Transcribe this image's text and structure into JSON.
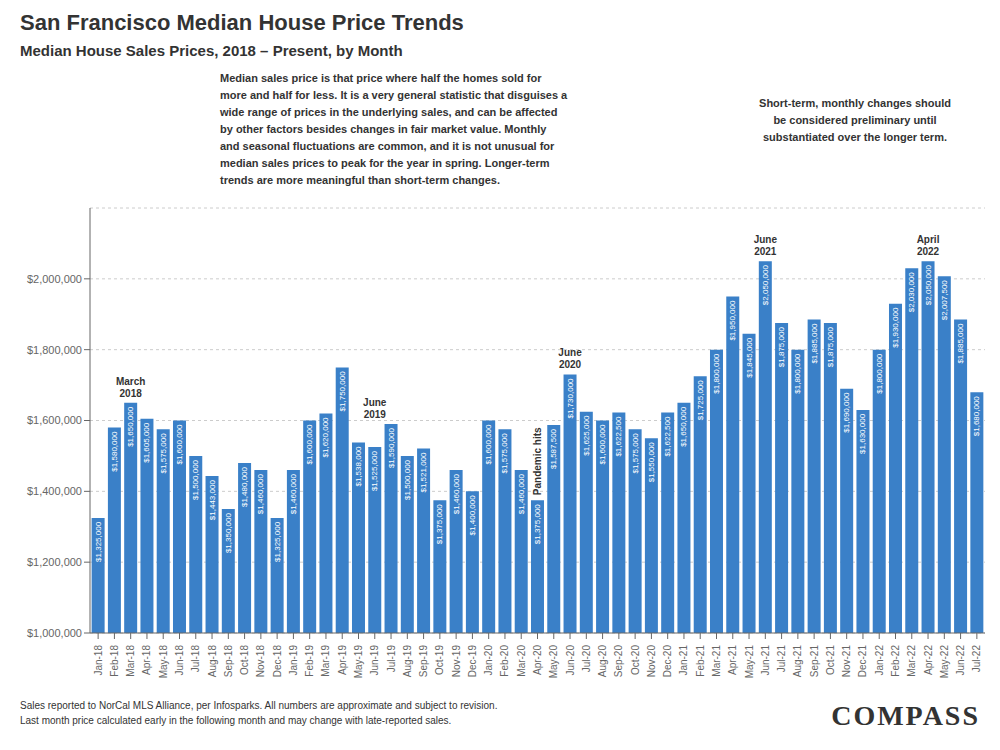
{
  "chart_data": {
    "type": "bar",
    "title": "San Francisco Median House Price Trends",
    "subtitle": "Median House Sales Prices, 2018 – Present, by Month",
    "categories": [
      "Jan-18",
      "Feb-18",
      "Mar-18",
      "Apr-18",
      "May-18",
      "Jun-18",
      "Jul-18",
      "Aug-18",
      "Sep-18",
      "Oct-18",
      "Nov-18",
      "Dec-18",
      "Jan-19",
      "Feb-19",
      "Mar-19",
      "Apr-19",
      "May-19",
      "Jun-19",
      "Jul-19",
      "Aug-19",
      "Sep-19",
      "Oct-19",
      "Nov-19",
      "Dec-19",
      "Jan-20",
      "Feb-20",
      "Mar-20",
      "Apr-20",
      "May-20",
      "Jun-20",
      "Jul-20",
      "Aug-20",
      "Sep-20",
      "Oct-20",
      "Nov-20",
      "Dec-20",
      "Jan-21",
      "Feb-21",
      "Mar-21",
      "Apr-21",
      "May-21",
      "Jun-21",
      "Jul-21",
      "Aug-21",
      "Sep-21",
      "Oct-21",
      "Nov-21",
      "Dec-21",
      "Jan-22",
      "Feb-22",
      "Mar-22",
      "Apr-22",
      "May-22",
      "Jun-22",
      "Jul-22"
    ],
    "values": [
      1325000,
      1580000,
      1650000,
      1605000,
      1575000,
      1600000,
      1500000,
      1443000,
      1350000,
      1480000,
      1460000,
      1325000,
      1460000,
      1600000,
      1620000,
      1750000,
      1538000,
      1525000,
      1590000,
      1500000,
      1521000,
      1375000,
      1460000,
      1400000,
      1600000,
      1575000,
      1460000,
      1375000,
      1587500,
      1730000,
      1625000,
      1600000,
      1622500,
      1575000,
      1550000,
      1622500,
      1650000,
      1725000,
      1800000,
      1950000,
      1845000,
      2050000,
      1875000,
      1800000,
      1885000,
      1875000,
      1690000,
      1630000,
      1800000,
      1930000,
      2030000,
      2050000,
      2007500,
      1885000,
      1680000
    ],
    "value_labels": [
      "$1,325,000",
      "$1,580,000",
      "$1,650,000",
      "$1,605,000",
      "$1,575,000",
      "$1,600,000",
      "$1,500,000",
      "$1,443,000",
      "$1,350,000",
      "$1,480,000",
      "$1,460,000",
      "$1,325,000",
      "$1,460,000",
      "$1,600,000",
      "$1,620,000",
      "$1,750,000",
      "$1,538,000",
      "$1,525,000",
      "$1,590,000",
      "$1,500,000",
      "$1,521,000",
      "$1,375,000",
      "$1,460,000",
      "$1,400,000",
      "$1,600,000",
      "$1,575,000",
      "$1,460,000",
      "$1,375,000",
      "$1,587,500",
      "$1,730,000",
      "$1,625,000",
      "$1,600,000",
      "$1,622,500",
      "$1,575,000",
      "$1,550,000",
      "$1,622,500",
      "$1,650,000",
      "$1,725,000",
      "$1,800,000",
      "$1,950,000",
      "$1,845,000",
      "$2,050,000",
      "$1,875,000",
      "$1,800,000",
      "$1,885,000",
      "$1,875,000",
      "$1,690,000",
      "$1,630,000",
      "$1,800,000",
      "$1,930,000",
      "$2,030,000",
      "$2,050,000",
      "$2,007,500",
      "$1,885,000",
      "$1,680,000"
    ],
    "color": "#3a80c8",
    "ylim": [
      1000000,
      2200000
    ],
    "yticks": [
      {
        "value": 1000000,
        "label": "$1,000,000"
      },
      {
        "value": 1200000,
        "label": "$1,200,000"
      },
      {
        "value": 1400000,
        "label": "$1,400,000"
      },
      {
        "value": 1600000,
        "label": "$1,600,000"
      },
      {
        "value": 1800000,
        "label": "$1,800,000"
      },
      {
        "value": 2000000,
        "label": "$2,000,000"
      }
    ],
    "grid": true,
    "data_labels": true,
    "annotations": [
      {
        "text": "March\n2018",
        "x": "Mar-18"
      },
      {
        "text": "June\n2019",
        "x": "Jun-19"
      },
      {
        "text": "Pandemic hits",
        "x": "Apr-20",
        "orientation": "vertical"
      },
      {
        "text": "June\n2020",
        "x": "Jun-20"
      },
      {
        "text": "June\n2021",
        "x": "Jun-21"
      },
      {
        "text": "April\n2022",
        "x": "Apr-22"
      }
    ],
    "description": [
      "Median sales price is that price where half the homes sold for",
      "more and half for less. It is a very general statistic that disguises a",
      "wide range of prices in the underlying sales, and can be affected",
      "by other factors besides changes in fair market value. Monthly",
      "and seasonal fluctuations are common, and it is not unusual for",
      "median sales prices to peak for the year in spring. Longer-term",
      "trends are more meaningful than short-term changes."
    ],
    "note": "Short-term, monthly changes should\nbe considered preliminary until\nsubstantiated over the longer term.",
    "footnotes": [
      "Sales reported to NorCal MLS Alliance, per Infosparks. All numbers are approximate and subject to revision.",
      "Last month price calculated early in the following month and may change with late-reported sales."
    ],
    "logo": "COMPASS"
  }
}
